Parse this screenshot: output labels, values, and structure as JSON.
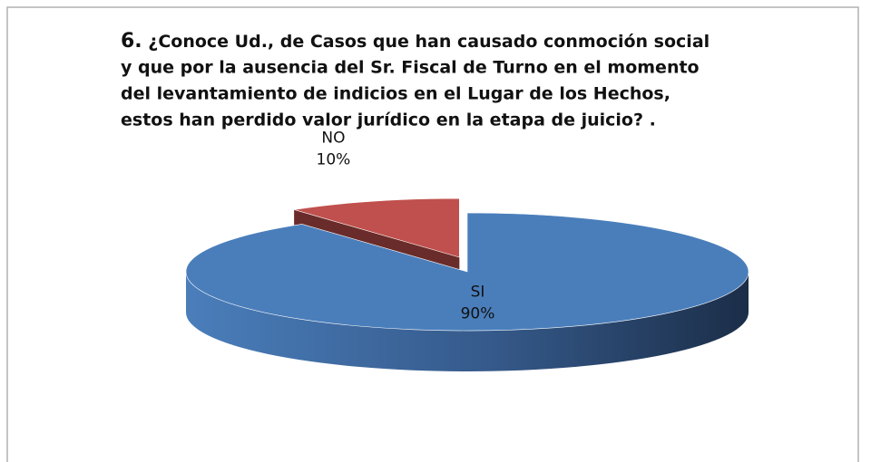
{
  "chart_data": {
    "type": "pie3d",
    "title_number": "6.",
    "title_lines": [
      "¿Conoce Ud., de Casos que han causado conmoción social",
      "y que por la ausencia del Sr. Fiscal de Turno en el momento",
      "del levantamiento de indicios en el Lugar de los Hechos,",
      "estos han perdido valor jurídico en la etapa de juicio? ."
    ],
    "categories": [
      "SI",
      "NO"
    ],
    "values": [
      90,
      10
    ],
    "value_labels": [
      "90%",
      "10%"
    ],
    "colors": [
      "#4a7ebb",
      "#c0504d"
    ],
    "exploded": [
      false,
      true
    ]
  }
}
